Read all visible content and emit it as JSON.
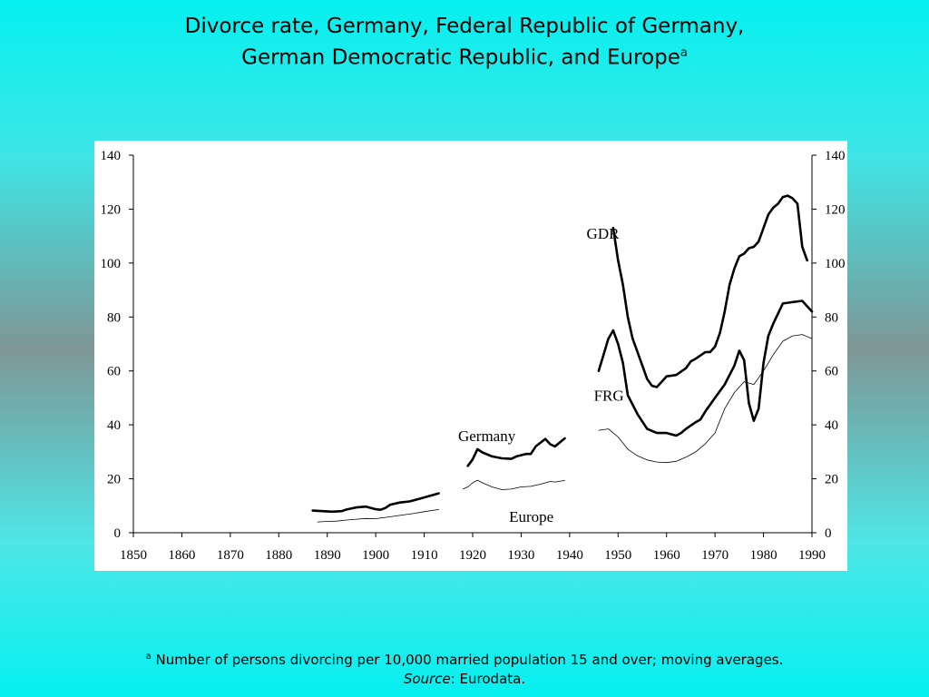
{
  "title": {
    "line1": "Divorce rate, Germany, Federal Republic of Germany,",
    "line2": "German Democratic Republic, and Europe",
    "superscript": "a"
  },
  "footnote": {
    "marker": "a",
    "text": "Number of persons divorcing per 10,000 married population 15 and over; moving averages.",
    "source_label": "Source",
    "source_text": ": Eurodata."
  },
  "chart_data": {
    "type": "line",
    "title": "",
    "xlabel": "",
    "ylabel": "",
    "xlim": [
      1850,
      1990
    ],
    "ylim": [
      0,
      140
    ],
    "x_ticks": [
      1850,
      1860,
      1870,
      1880,
      1890,
      1900,
      1910,
      1920,
      1930,
      1940,
      1950,
      1960,
      1970,
      1980,
      1990
    ],
    "y_ticks": [
      0,
      20,
      40,
      60,
      80,
      100,
      120,
      140
    ],
    "y_axis_right_ticks": true,
    "grid": false,
    "legend": "none",
    "annotations": [
      {
        "text": "GDR",
        "x": 1943.5,
        "y": 109
      },
      {
        "text": "FRG",
        "x": 1945,
        "y": 49
      },
      {
        "text": "Germany",
        "x": 1917,
        "y": 34
      },
      {
        "text": "Europe",
        "x": 1927.5,
        "y": 4
      }
    ],
    "series": [
      {
        "name": "Germany",
        "style": "thick",
        "segments": [
          [
            [
              1887,
              8.2
            ],
            [
              1889,
              8.0
            ],
            [
              1891,
              7.8
            ],
            [
              1893,
              8.0
            ],
            [
              1894,
              8.6
            ],
            [
              1896,
              9.4
            ],
            [
              1898,
              9.7
            ],
            [
              1900,
              8.7
            ],
            [
              1901,
              8.5
            ],
            [
              1902,
              9.2
            ],
            [
              1903,
              10.4
            ],
            [
              1905,
              11.2
            ],
            [
              1907,
              11.6
            ],
            [
              1909,
              12.6
            ],
            [
              1911,
              13.6
            ],
            [
              1913,
              14.6
            ]
          ],
          [
            [
              1919,
              24.8
            ],
            [
              1920,
              27.2
            ],
            [
              1921,
              31.0
            ],
            [
              1922,
              29.8
            ],
            [
              1924,
              28.3
            ],
            [
              1926,
              27.6
            ],
            [
              1928,
              27.4
            ],
            [
              1929,
              28.3
            ],
            [
              1931,
              29.2
            ],
            [
              1932,
              29.2
            ],
            [
              1933,
              32.0
            ],
            [
              1935,
              34.8
            ],
            [
              1936,
              32.8
            ],
            [
              1937,
              32.0
            ],
            [
              1939,
              35.0
            ]
          ]
        ]
      },
      {
        "name": "Europe",
        "style": "thin",
        "segments": [
          [
            [
              1888,
              4.0
            ],
            [
              1890,
              4.2
            ],
            [
              1892,
              4.3
            ],
            [
              1894,
              4.7
            ],
            [
              1896,
              5.0
            ],
            [
              1898,
              5.3
            ],
            [
              1900,
              5.2
            ],
            [
              1902,
              5.7
            ],
            [
              1904,
              6.2
            ],
            [
              1906,
              6.7
            ],
            [
              1908,
              7.2
            ],
            [
              1910,
              7.8
            ],
            [
              1913,
              8.6
            ]
          ],
          [
            [
              1918,
              16.2
            ],
            [
              1919,
              17.0
            ],
            [
              1920,
              18.5
            ],
            [
              1921,
              19.5
            ],
            [
              1922,
              18.5
            ],
            [
              1924,
              17.0
            ],
            [
              1926,
              16.0
            ],
            [
              1928,
              16.2
            ],
            [
              1930,
              17.0
            ],
            [
              1932,
              17.2
            ],
            [
              1934,
              18.0
            ],
            [
              1936,
              19.0
            ],
            [
              1937,
              18.8
            ],
            [
              1939,
              19.4
            ]
          ],
          [
            [
              1946,
              38.0
            ],
            [
              1948,
              38.5
            ],
            [
              1950,
              35.5
            ],
            [
              1952,
              31.0
            ],
            [
              1954,
              28.5
            ],
            [
              1956,
              27.0
            ],
            [
              1958,
              26.2
            ],
            [
              1960,
              26.0
            ],
            [
              1962,
              26.5
            ],
            [
              1964,
              28.0
            ],
            [
              1966,
              30.0
            ],
            [
              1968,
              33.0
            ],
            [
              1970,
              37.0
            ],
            [
              1972,
              46.0
            ],
            [
              1974,
              52.0
            ],
            [
              1976,
              56.0
            ],
            [
              1978,
              55.0
            ],
            [
              1980,
              60.0
            ],
            [
              1982,
              66.0
            ],
            [
              1984,
              71.0
            ],
            [
              1986,
              73.0
            ],
            [
              1988,
              73.5
            ],
            [
              1990,
              72.0
            ]
          ]
        ]
      },
      {
        "name": "FRG",
        "style": "thick",
        "segments": [
          [
            [
              1946,
              60.0
            ],
            [
              1947,
              66.0
            ],
            [
              1948,
              72.0
            ],
            [
              1949,
              75.0
            ],
            [
              1950,
              70.0
            ],
            [
              1951,
              63.0
            ],
            [
              1952,
              51.0
            ],
            [
              1954,
              44.0
            ],
            [
              1956,
              38.5
            ],
            [
              1958,
              37.0
            ],
            [
              1960,
              37.0
            ],
            [
              1962,
              36.0
            ],
            [
              1963,
              37.0
            ],
            [
              1964,
              38.5
            ],
            [
              1966,
              41.0
            ],
            [
              1967,
              42.0
            ],
            [
              1968,
              45.0
            ],
            [
              1970,
              50.0
            ],
            [
              1972,
              55.0
            ],
            [
              1974,
              62.0
            ],
            [
              1975,
              67.5
            ],
            [
              1976,
              64.0
            ],
            [
              1977,
              48.0
            ],
            [
              1978,
              41.5
            ],
            [
              1979,
              46.0
            ],
            [
              1980,
              63.0
            ],
            [
              1981,
              73.0
            ],
            [
              1982,
              77.5
            ],
            [
              1984,
              85.0
            ],
            [
              1986,
              85.5
            ],
            [
              1988,
              86.0
            ],
            [
              1990,
              82.0
            ]
          ]
        ]
      },
      {
        "name": "GDR",
        "style": "thick",
        "segments": [
          [
            [
              1949,
              113.0
            ],
            [
              1950,
              101.0
            ],
            [
              1951,
              92.0
            ],
            [
              1952,
              80.0
            ],
            [
              1953,
              72.0
            ],
            [
              1954,
              67.0
            ],
            [
              1956,
              57.0
            ],
            [
              1957,
              54.5
            ],
            [
              1958,
              54.0
            ],
            [
              1959,
              56.0
            ],
            [
              1960,
              58.0
            ],
            [
              1962,
              58.5
            ],
            [
              1964,
              61.0
            ],
            [
              1965,
              63.5
            ],
            [
              1966,
              64.5
            ],
            [
              1968,
              67.0
            ],
            [
              1969,
              67.0
            ],
            [
              1970,
              69.0
            ],
            [
              1971,
              74.0
            ],
            [
              1972,
              82.0
            ],
            [
              1973,
              92.0
            ],
            [
              1974,
              98.0
            ],
            [
              1975,
              102.5
            ],
            [
              1976,
              103.5
            ],
            [
              1977,
              105.5
            ],
            [
              1978,
              106.0
            ],
            [
              1979,
              108.0
            ],
            [
              1980,
              113.0
            ],
            [
              1981,
              118.0
            ],
            [
              1982,
              120.5
            ],
            [
              1983,
              122.0
            ],
            [
              1984,
              124.5
            ],
            [
              1985,
              125.0
            ],
            [
              1986,
              124.0
            ],
            [
              1987,
              122.0
            ],
            [
              1988,
              106.0
            ],
            [
              1989,
              101.0
            ]
          ]
        ]
      }
    ]
  }
}
